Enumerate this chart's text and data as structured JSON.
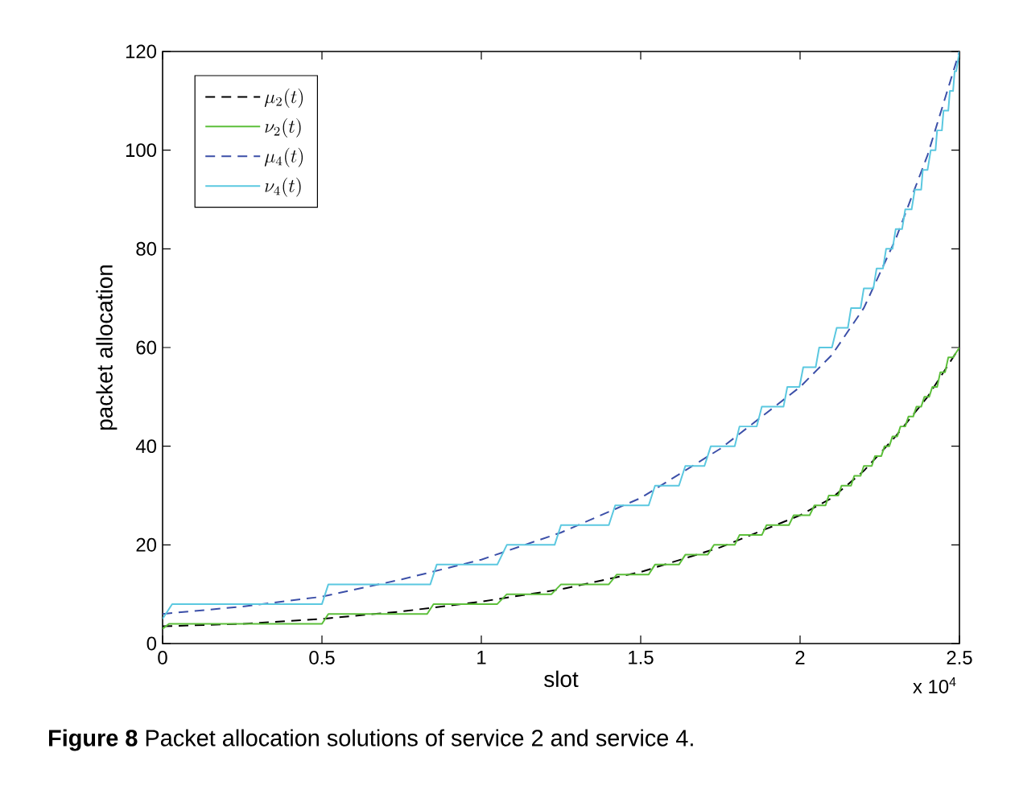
{
  "chart_data": {
    "type": "line",
    "xlabel": "slot",
    "ylabel": "packet allocation",
    "annotations": [
      "**Figure 8** Packet allocation solutions of service 2 and service 4.",
      "x 10$^{4}$"
    ],
    "xlim": [
      0,
      2.5
    ],
    "ylim": [
      0,
      120
    ],
    "xticks": [
      0,
      0.5,
      1,
      1.5,
      2,
      2.5
    ],
    "yticks": [
      0,
      20,
      40,
      60,
      80,
      100,
      120
    ],
    "grid": false,
    "legend": "top left",
    "marker": "none",
    "series": [
      {
        "name": "\\mu_{2}(t)",
        "color": "#000000",
        "line_style": "dashed",
        "x": [
          0,
          0.25,
          0.5,
          0.75,
          1,
          1.25,
          1.5,
          1.75,
          2,
          2.1,
          2.2,
          2.3,
          2.4,
          2.5
        ],
        "values": [
          3.5,
          4,
          5,
          6.5,
          8.5,
          11,
          14.5,
          19.5,
          26,
          29.5,
          35,
          42,
          50,
          60
        ]
      },
      {
        "name": "\\nu_{2}(t)",
        "color": "#5cbf3a",
        "line_style": "solid",
        "x": [
          0,
          0.02,
          0.5,
          0.52,
          0.83,
          0.85,
          1.05,
          1.08,
          1.22,
          1.25,
          1.4,
          1.425,
          1.525,
          1.545,
          1.62,
          1.64,
          1.71,
          1.73,
          1.795,
          1.81,
          1.88,
          1.895,
          1.965,
          1.98,
          2.03,
          2.045,
          2.08,
          2.09,
          2.12,
          2.13,
          2.16,
          2.17,
          2.19,
          2.2,
          2.225,
          2.235,
          2.255,
          2.265,
          2.28,
          2.29,
          2.305,
          2.315,
          2.33,
          2.34,
          2.355,
          2.365,
          2.38,
          2.39,
          2.405,
          2.415,
          2.43,
          2.44,
          2.455,
          2.465,
          2.48,
          2.5
        ],
        "values": [
          3,
          4,
          4,
          6,
          6,
          8,
          8,
          10,
          10,
          12,
          12,
          14,
          14,
          16,
          16,
          18,
          18,
          20,
          20,
          22,
          22,
          24,
          24,
          26,
          26,
          28,
          28,
          30,
          30,
          32,
          32,
          34,
          34,
          36,
          36,
          38,
          38,
          40,
          40,
          42,
          42,
          44,
          44,
          46,
          46,
          48,
          48,
          50,
          50,
          52,
          52,
          55,
          55,
          58,
          58,
          60
        ]
      },
      {
        "name": "\\mu_{4}(t)",
        "color": "#3b4fa8",
        "line_style": "dashed",
        "x": [
          0,
          0.25,
          0.5,
          0.75,
          1,
          1.25,
          1.5,
          1.75,
          2,
          2.1,
          2.2,
          2.3,
          2.4,
          2.5
        ],
        "values": [
          6,
          7.5,
          9.5,
          13,
          17,
          22.5,
          29.5,
          39.5,
          52,
          58.5,
          68,
          82,
          99,
          120
        ]
      },
      {
        "name": "\\nu_{4}(t)",
        "color": "#5bc8e0",
        "line_style": "solid",
        "x": [
          0,
          0.03,
          0.5,
          0.52,
          0.84,
          0.86,
          1.05,
          1.08,
          1.23,
          1.25,
          1.4,
          1.42,
          1.525,
          1.545,
          1.62,
          1.64,
          1.7,
          1.72,
          1.795,
          1.81,
          1.864,
          1.88,
          1.948,
          1.96,
          1.998,
          2.01,
          2.049,
          2.06,
          2.1,
          2.115,
          2.15,
          2.16,
          2.19,
          2.2,
          2.23,
          2.24,
          2.26,
          2.27,
          2.29,
          2.3,
          2.32,
          2.33,
          2.35,
          2.36,
          2.38,
          2.385,
          2.4,
          2.41,
          2.425,
          2.43,
          2.445,
          2.45,
          2.465,
          2.47,
          2.48,
          2.485,
          2.49,
          2.5
        ],
        "values": [
          5,
          8,
          8,
          12,
          12,
          16,
          16,
          20,
          20,
          24,
          24,
          28,
          28,
          32,
          32,
          36,
          36,
          40,
          40,
          44,
          44,
          48,
          48,
          52,
          52,
          56,
          56,
          60,
          60,
          64,
          64,
          68,
          68,
          72,
          72,
          76,
          76,
          80,
          80,
          84,
          84,
          88,
          88,
          92,
          92,
          96,
          96,
          100,
          100,
          104,
          104,
          108,
          108,
          112,
          112,
          116,
          116,
          120
        ]
      }
    ]
  }
}
